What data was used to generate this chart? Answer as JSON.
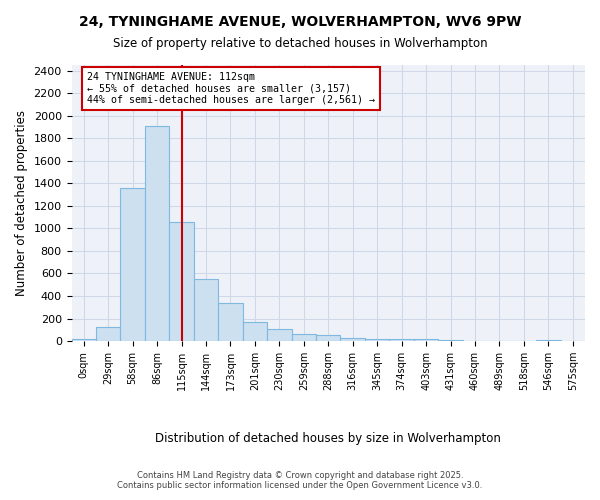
{
  "title1": "24, TYNINGHAME AVENUE, WOLVERHAMPTON, WV6 9PW",
  "title2": "Size of property relative to detached houses in Wolverhampton",
  "xlabel": "Distribution of detached houses by size in Wolverhampton",
  "ylabel": "Number of detached properties",
  "footer1": "Contains HM Land Registry data © Crown copyright and database right 2025.",
  "footer2": "Contains public sector information licensed under the Open Government Licence v3.0.",
  "bin_labels": [
    "0sqm",
    "29sqm",
    "58sqm",
    "86sqm",
    "115sqm",
    "144sqm",
    "173sqm",
    "201sqm",
    "230sqm",
    "259sqm",
    "288sqm",
    "316sqm",
    "345sqm",
    "374sqm",
    "403sqm",
    "431sqm",
    "460sqm",
    "489sqm",
    "518sqm",
    "546sqm",
    "575sqm"
  ],
  "bar_values": [
    15,
    125,
    1360,
    1910,
    1055,
    555,
    335,
    170,
    110,
    60,
    55,
    30,
    20,
    20,
    15,
    10,
    5,
    0,
    0,
    10,
    0
  ],
  "bar_color": "#cce0f0",
  "bar_edge_color": "#7fb8e0",
  "grid_color": "#d0d8e8",
  "background_color": "#eef2f8",
  "property_label": "24 TYNINGHAME AVENUE: 112sqm",
  "annotation_line1": "← 55% of detached houses are smaller (3,157)",
  "annotation_line2": "44% of semi-detached houses are larger (2,561) →",
  "vline_color": "#cc0000",
  "vline_bin_index": 4,
  "annotation_border_color": "#cc0000",
  "ylim": [
    0,
    2450
  ],
  "yticks": [
    0,
    200,
    400,
    600,
    800,
    1000,
    1200,
    1400,
    1600,
    1800,
    2000,
    2200,
    2400
  ]
}
